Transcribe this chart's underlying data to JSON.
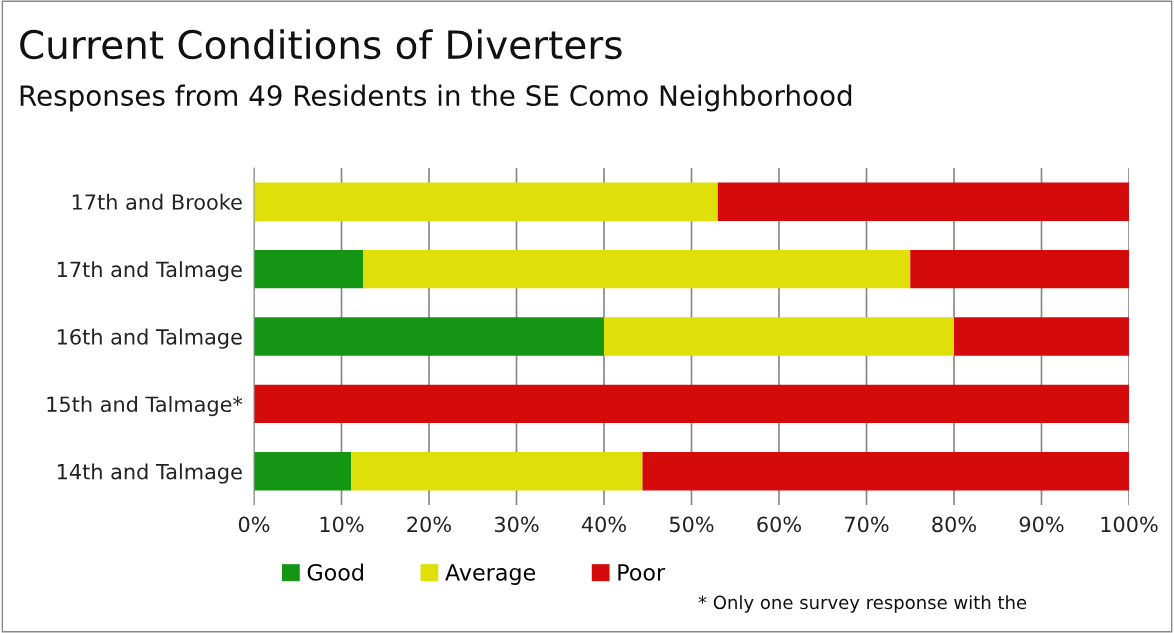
{
  "chart_data": {
    "type": "bar",
    "orientation": "horizontal",
    "stacked": true,
    "title": "Current Conditions of Diverters",
    "subtitle": "Responses from 49 Residents in the SE Como Neighborhood",
    "categories": [
      "17th and Brooke",
      "17th and Talmage",
      "16th and Talmage",
      "15th and Talmage*",
      "14th and Talmage"
    ],
    "series": [
      {
        "name": "Good",
        "color": "#149614",
        "values": [
          0,
          12.5,
          40,
          0,
          11.1
        ]
      },
      {
        "name": "Average",
        "color": "#dfdf09",
        "values": [
          53,
          62.5,
          40,
          0,
          33.3
        ]
      },
      {
        "name": "Poor",
        "color": "#d50b0b",
        "values": [
          47,
          25,
          20,
          100,
          55.6
        ]
      }
    ],
    "xlim": [
      0,
      100
    ],
    "xticks": [
      {
        "value": 0,
        "label": "0%"
      },
      {
        "value": 10,
        "label": "10%"
      },
      {
        "value": 20,
        "label": "20%"
      },
      {
        "value": 30,
        "label": "30%"
      },
      {
        "value": 40,
        "label": "40%"
      },
      {
        "value": 50,
        "label": "50%"
      },
      {
        "value": 60,
        "label": "60%"
      },
      {
        "value": 70,
        "label": "70%"
      },
      {
        "value": 80,
        "label": "80%"
      },
      {
        "value": 90,
        "label": "90%"
      },
      {
        "value": 100,
        "label": "100%"
      }
    ],
    "grid": "x",
    "legend": "bottom left",
    "annotations": [
      "* Only one survey response with the"
    ]
  }
}
